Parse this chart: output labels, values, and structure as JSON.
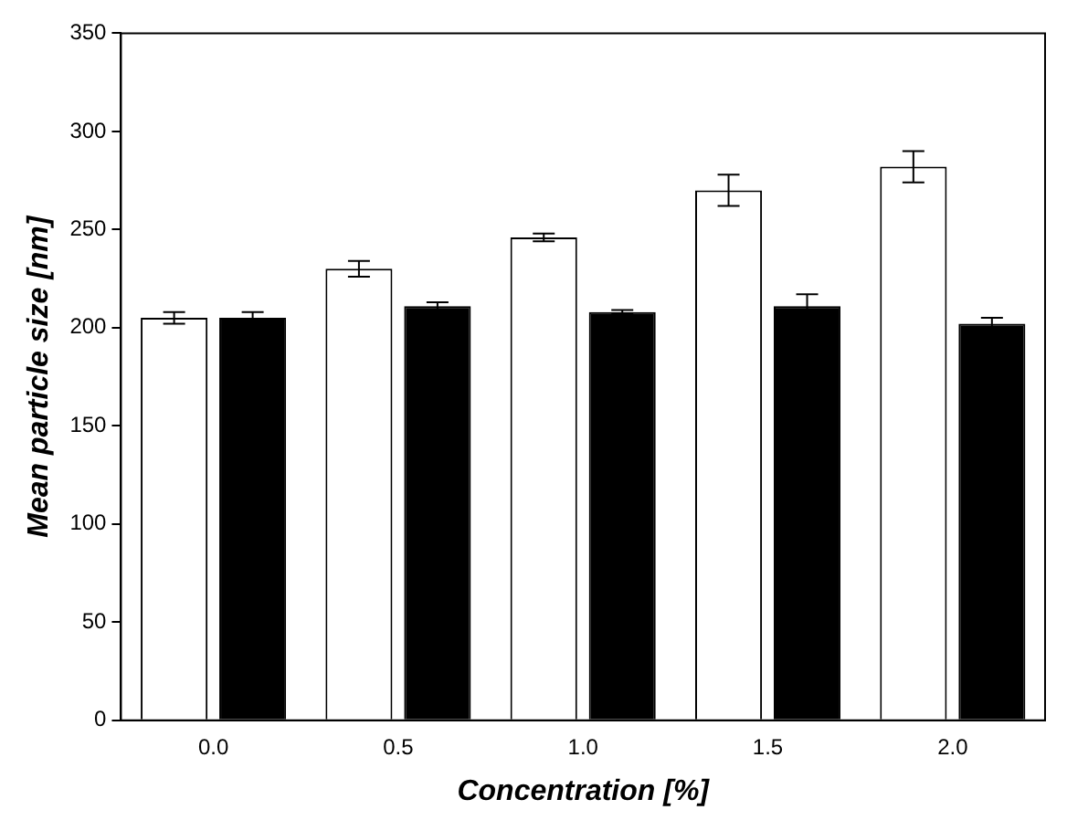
{
  "chart_data": {
    "type": "bar",
    "xlabel": "Concentration [%]",
    "ylabel": "Mean particle size [nm]",
    "categories": [
      "0.0",
      "0.5",
      "1.0",
      "1.5",
      "2.0"
    ],
    "series": [
      {
        "color": "#ffffff",
        "values": [
          205,
          230,
          246,
          270,
          282
        ],
        "errors": [
          3,
          4,
          2,
          8,
          8
        ]
      },
      {
        "color": "#000000",
        "values": [
          205,
          211,
          208,
          211,
          202
        ],
        "errors": [
          3,
          2,
          1,
          6,
          3
        ]
      }
    ],
    "ylim": [
      0,
      350
    ],
    "yticks": [
      0,
      50,
      100,
      150,
      200,
      250,
      300,
      350
    ],
    "grid": false,
    "legend": false
  }
}
